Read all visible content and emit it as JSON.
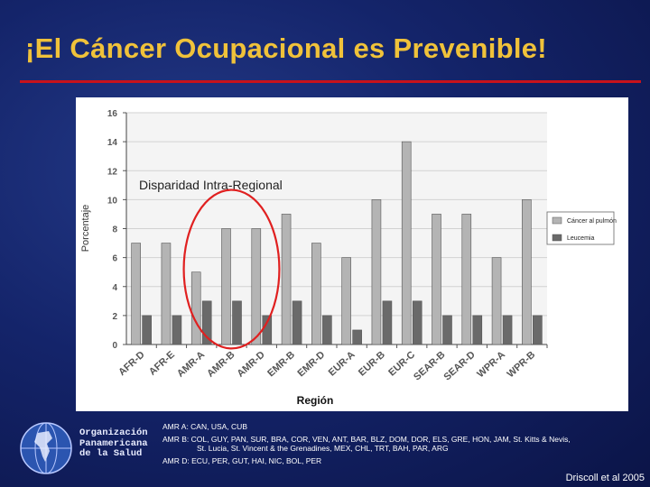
{
  "slide": {
    "title": "¡El Cáncer Ocupacional es Prevenible!",
    "credit": "Driscoll et al 2005"
  },
  "org": {
    "line1": "Organización",
    "line2": "Panamericana",
    "line3": "de la Salud"
  },
  "notes": [
    "AMR A: CAN, USA, CUB",
    "AMR B: COL, GUY, PAN, SUR, BRA, COR, VEN, ANT, BAR, BLZ, DOM, DOR, ELS, GRE, HON, JAM, St. Kitts & Nevis,",
    "St. Lucia, St. Vincent & the Grenadines, MEX, CHL, TRT, BAH, PAR, ARG",
    "AMR D: ECU, PER, GUT, HAI, NIC, BOL, PER"
  ],
  "colors": {
    "title": "#f0c23a",
    "rule": "#c8121b",
    "lung": "#b4b4b4",
    "leukemia": "#6a6a6a",
    "highlight": "#e02020"
  },
  "chart_data": {
    "type": "bar",
    "title": "",
    "annotation": "Disparidad Intra-Regional",
    "xlabel": "Región",
    "ylabel": "Porcentaje",
    "ylim": [
      0,
      16
    ],
    "yticks": [
      0,
      2,
      4,
      6,
      8,
      10,
      12,
      14,
      16
    ],
    "grid": true,
    "legend": "right",
    "categories": [
      "AFR-D",
      "AFR-E",
      "AMR-A",
      "AMR-B",
      "AMR-D",
      "EMR-B",
      "EMR-D",
      "EUR-A",
      "EUR-B",
      "EUR-C",
      "SEAR-B",
      "SEAR-D",
      "WPR-A",
      "WPR-B"
    ],
    "series": [
      {
        "name": "Cáncer al pulmón",
        "values": [
          7,
          7,
          5,
          8,
          8,
          9,
          7,
          6,
          10,
          14,
          9,
          9,
          6,
          10
        ]
      },
      {
        "name": "Leucemia",
        "values": [
          2,
          2,
          3,
          3,
          2,
          3,
          2,
          1,
          3,
          3,
          2,
          2,
          2,
          2
        ]
      }
    ],
    "highlighted_categories": [
      "AMR-A",
      "AMR-B",
      "AMR-D"
    ]
  }
}
